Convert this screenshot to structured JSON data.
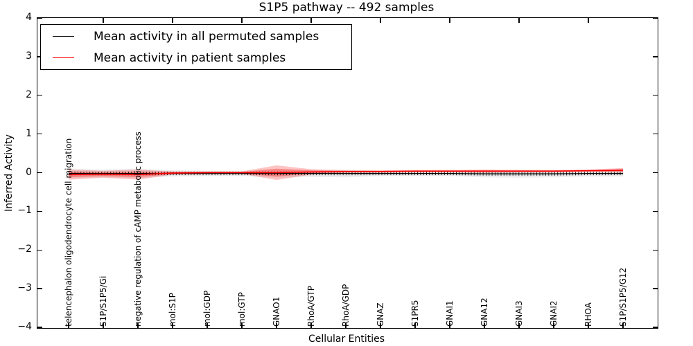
{
  "figure": {
    "title": "S1P5 pathway -- 492 samples",
    "xlabel": "Cellular Entities",
    "ylabel": "Inferred Activity"
  },
  "legend": {
    "entries": [
      {
        "label": "Mean activity in all permuted samples",
        "color": "#000000"
      },
      {
        "label": "Mean activity in patient samples",
        "color": "#ff0000"
      }
    ]
  },
  "colors": {
    "permuted_line": "#000000",
    "patient_line": "#ff0000",
    "permuted_band": "#d9d9d9",
    "patient_band": "#ff0000",
    "axis": "#000000"
  },
  "chart_data": {
    "type": "line",
    "title": "S1P5 pathway -- 492 samples",
    "xlabel": "Cellular Entities",
    "ylabel": "Inferred Activity",
    "ylim": [
      -4,
      4
    ],
    "ytick_values": [
      4,
      3,
      2,
      1,
      0,
      -1,
      -2,
      -3,
      -4
    ],
    "ytick_labels": [
      "4",
      "3",
      "2",
      "1",
      "0",
      "−1",
      "−2",
      "−3",
      "−4"
    ],
    "grid": false,
    "legend_position": "upper left",
    "categories": [
      "telencephalon oligodendrocyte cell migration",
      "S1P/S1P5/Gi",
      "negative regulation of cAMP metabolic process",
      "mol:S1P",
      "mol:GDP",
      "mol:GTP",
      "GNAO1",
      "RhoA/GTP",
      "RhoA/GDP",
      "GNAZ",
      "S1PR5",
      "GNAI1",
      "GNA12",
      "GNAI3",
      "GNAI2",
      "RHOA",
      "S1P/S1P5/G12"
    ],
    "series": [
      {
        "name": "Mean activity in all permuted samples",
        "color": "#000000",
        "values": [
          -0.02,
          -0.02,
          -0.02,
          -0.02,
          -0.02,
          -0.02,
          -0.02,
          -0.02,
          -0.02,
          -0.02,
          -0.02,
          -0.02,
          -0.03,
          -0.03,
          -0.03,
          -0.02,
          -0.02
        ]
      },
      {
        "name": "Mean activity in patient samples",
        "color": "#ff0000",
        "values": [
          -0.05,
          -0.04,
          -0.05,
          -0.01,
          0.0,
          0.0,
          0.0,
          0.02,
          0.03,
          0.03,
          0.04,
          0.04,
          0.04,
          0.04,
          0.04,
          0.05,
          0.06
        ]
      }
    ],
    "bands": [
      {
        "name": "permuted-std-band",
        "center_series": 0,
        "halfwidths": [
          0.12,
          0.1,
          0.12,
          0.08,
          0.07,
          0.07,
          0.11,
          0.09,
          0.1,
          0.07,
          0.07,
          0.07,
          0.09,
          0.1,
          0.09,
          0.08,
          0.08
        ],
        "color": "#d9d9d9",
        "opacity": 0.55
      },
      {
        "name": "patient-std-band",
        "center_series": 1,
        "halfwidths": [
          0.13,
          0.09,
          0.13,
          0.04,
          0.03,
          0.03,
          0.19,
          0.07,
          0.03,
          0.03,
          0.03,
          0.03,
          0.04,
          0.03,
          0.03,
          0.03,
          0.06
        ],
        "color": "#ff0000",
        "opacity": 0.27
      }
    ]
  }
}
